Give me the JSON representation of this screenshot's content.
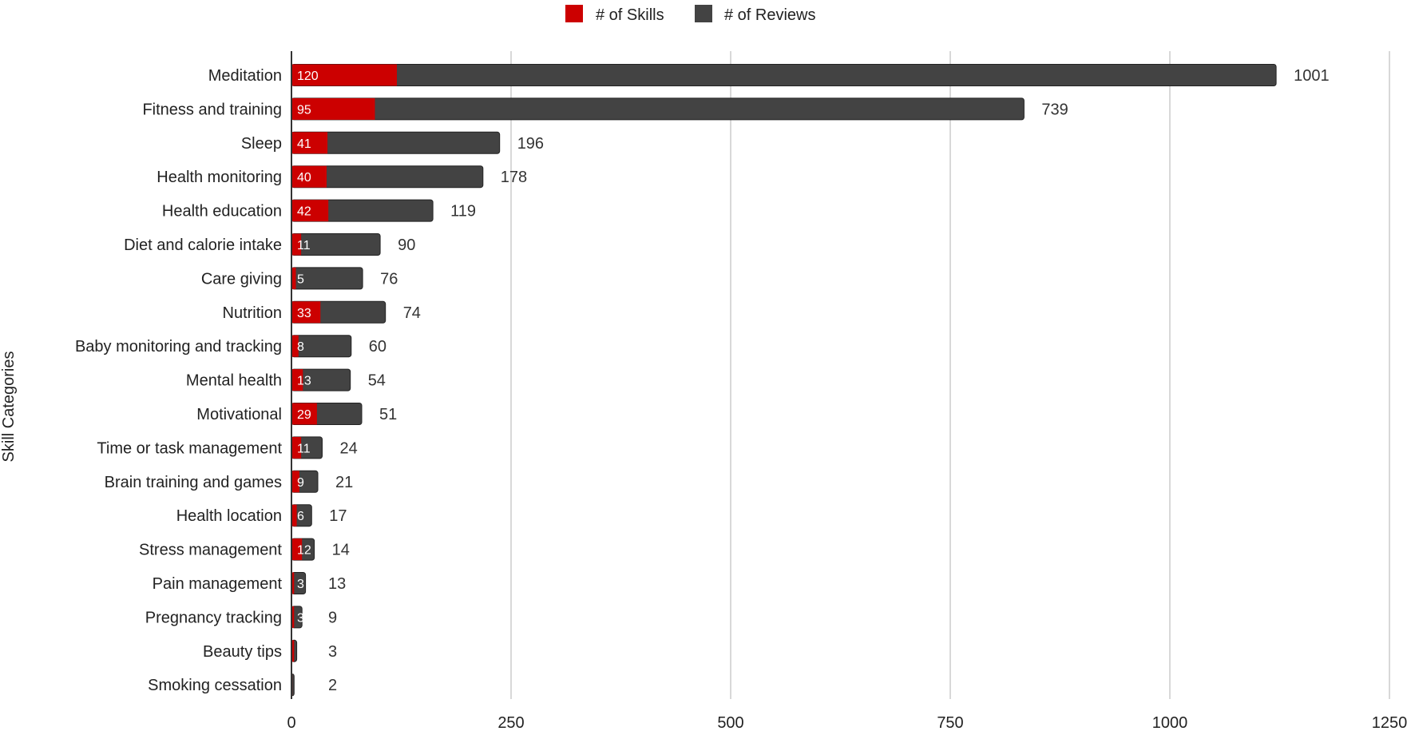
{
  "chart_data": {
    "type": "bar",
    "orientation": "horizontal",
    "stacked": true,
    "ylabel": "Skill Categories",
    "xlabel": "",
    "xlim": [
      0,
      1250
    ],
    "xticks": [
      0,
      250,
      500,
      750,
      1000,
      1250
    ],
    "grid": "vertical",
    "legend": "top-center",
    "categories": [
      "Meditation",
      "Fitness and training",
      "Sleep",
      "Health monitoring",
      "Health education",
      "Diet and calorie intake",
      "Care giving",
      "Nutrition",
      "Baby monitoring and tracking",
      "Mental health",
      "Motivational",
      "Time or task management",
      "Brain training and games",
      "Health location",
      "Stress management",
      "Pain management",
      "Pregnancy tracking",
      "Beauty tips",
      "Smoking cessation"
    ],
    "series": [
      {
        "name": "# of Skills",
        "color": "#cc0000",
        "values": [
          120,
          95,
          41,
          40,
          42,
          11,
          5,
          33,
          8,
          13,
          29,
          11,
          9,
          6,
          12,
          3,
          3,
          3,
          1
        ]
      },
      {
        "name": "# of Reviews",
        "color": "#434343",
        "values": [
          1001,
          739,
          196,
          178,
          119,
          90,
          76,
          74,
          60,
          54,
          51,
          24,
          21,
          17,
          14,
          13,
          9,
          3,
          2
        ]
      }
    ]
  }
}
